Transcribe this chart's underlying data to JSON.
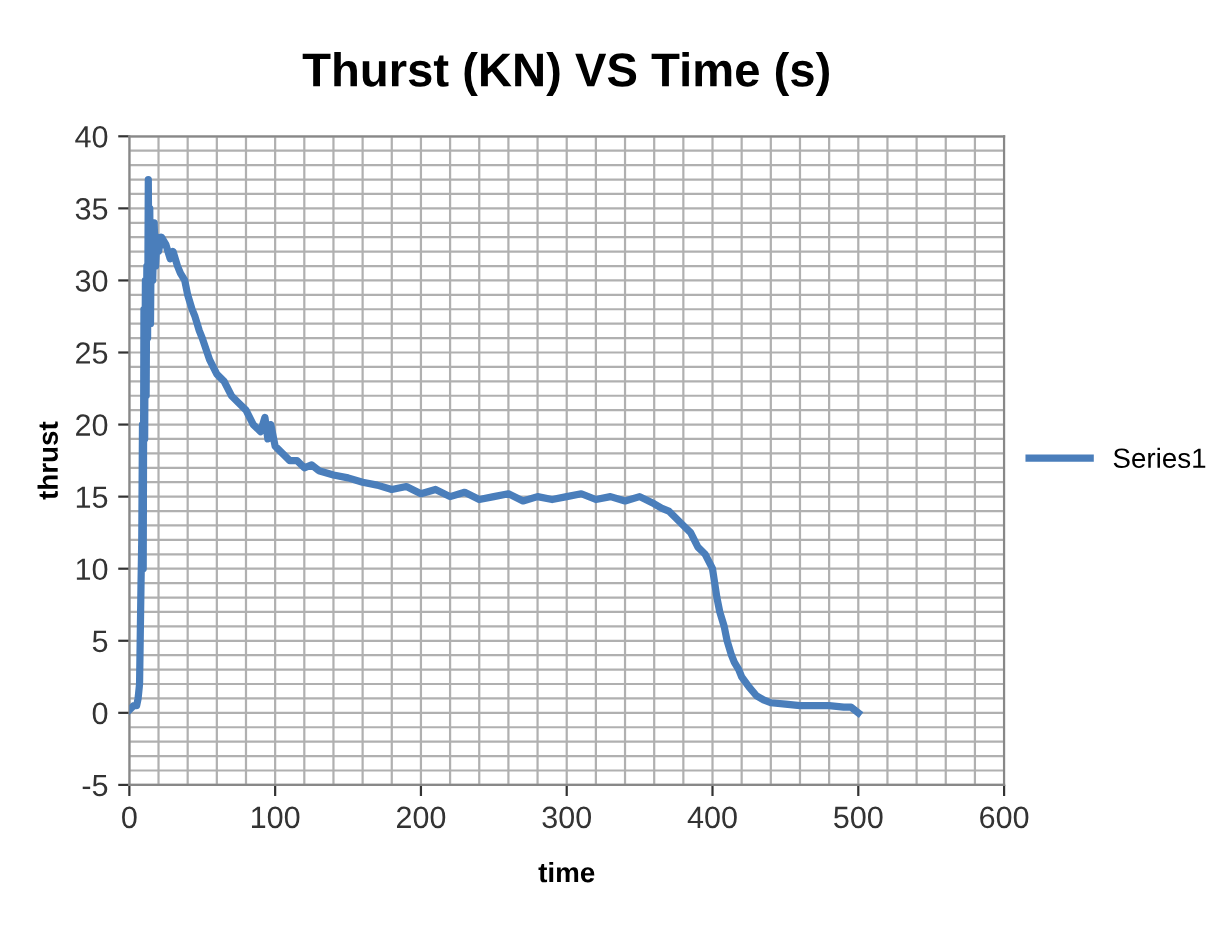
{
  "chart_data": {
    "type": "line",
    "title": "Thurst (KN) VS Time (s)",
    "xlabel": "time",
    "ylabel": "thrust",
    "xlim": [
      0,
      600
    ],
    "xticks": [
      0,
      100,
      200,
      300,
      400,
      500,
      600
    ],
    "ylim": [
      -5,
      40
    ],
    "yticks": [
      -5,
      0,
      5,
      10,
      15,
      20,
      25,
      30,
      35,
      40
    ],
    "grid": true,
    "legend": "right",
    "marker": "none",
    "line_style": "solid",
    "series": [
      {
        "name": "Series1",
        "color": "#4a7ebb",
        "x": [
          0,
          3,
          5,
          6,
          7,
          8,
          8.5,
          9,
          9.5,
          10,
          10.5,
          11,
          11.5,
          12,
          12.5,
          13,
          13.5,
          14,
          14.5,
          15,
          16,
          17,
          18,
          19,
          20,
          22,
          25,
          28,
          30,
          33,
          35,
          38,
          40,
          43,
          45,
          48,
          50,
          55,
          60,
          65,
          70,
          75,
          80,
          85,
          90,
          93,
          95,
          97,
          100,
          105,
          110,
          115,
          120,
          125,
          130,
          140,
          150,
          160,
          170,
          180,
          190,
          200,
          210,
          220,
          230,
          240,
          250,
          260,
          270,
          280,
          290,
          300,
          310,
          320,
          330,
          340,
          350,
          360,
          365,
          370,
          375,
          380,
          385,
          390,
          395,
          400,
          403,
          405,
          408,
          410,
          413,
          415,
          418,
          420,
          425,
          430,
          435,
          440,
          450,
          460,
          470,
          480,
          490,
          495,
          500
        ],
        "values": [
          0.2,
          0.5,
          0.5,
          1,
          2,
          9,
          12,
          20,
          10,
          28,
          19,
          30,
          22,
          31,
          26,
          37,
          28,
          35,
          27,
          33,
          30,
          34,
          31,
          33,
          32,
          33,
          32.5,
          31.5,
          32,
          31,
          30.5,
          30,
          29,
          28,
          27.5,
          26.5,
          26,
          24.5,
          23.5,
          23,
          22,
          21.5,
          21,
          20,
          19.5,
          20.5,
          19,
          20,
          18.5,
          18,
          17.5,
          17.5,
          17,
          17.2,
          16.8,
          16.5,
          16.3,
          16,
          15.8,
          15.5,
          15.7,
          15.2,
          15.5,
          15,
          15.3,
          14.8,
          15,
          15.2,
          14.7,
          15,
          14.8,
          15,
          15.2,
          14.8,
          15,
          14.7,
          15,
          14.5,
          14.2,
          14,
          13.5,
          13,
          12.5,
          11.5,
          11,
          10,
          8,
          7,
          6,
          5,
          4,
          3.5,
          3,
          2.5,
          1.8,
          1.2,
          0.9,
          0.7,
          0.6,
          0.5,
          0.5,
          0.5,
          0.4,
          0.4,
          0
        ]
      }
    ]
  }
}
